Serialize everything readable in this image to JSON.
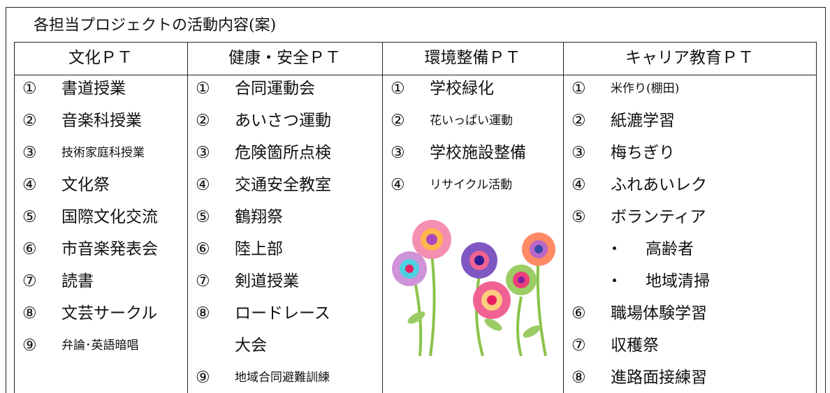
{
  "title": "各担当プロジェクトの活動内容(案)",
  "table": {
    "headers": [
      "文化ＰＴ",
      "健康・安全ＰＴ",
      "環境整備ＰＴ",
      "キャリア教育ＰＴ"
    ],
    "columns": [
      {
        "items": [
          {
            "num": "①",
            "text": "書道授業"
          },
          {
            "num": "②",
            "text": "音楽科授業"
          },
          {
            "num": "③",
            "text": "技術家庭科授業"
          },
          {
            "num": "④",
            "text": "文化祭"
          },
          {
            "num": "⑤",
            "text": "国際文化交流"
          },
          {
            "num": "⑥",
            "text": "市音楽発表会"
          },
          {
            "num": "⑦",
            "text": "読書"
          },
          {
            "num": "⑧",
            "text": "文芸サークル"
          },
          {
            "num": "⑨",
            "text": "弁論･英語暗唱"
          }
        ]
      },
      {
        "items": [
          {
            "num": "①",
            "text": "合同運動会"
          },
          {
            "num": "②",
            "text": "あいさつ運動"
          },
          {
            "num": "③",
            "text": "危険箇所点検"
          },
          {
            "num": "④",
            "text": "交通安全教室"
          },
          {
            "num": "⑤",
            "text": "鶴翔祭"
          },
          {
            "num": "⑥",
            "text": "陸上部"
          },
          {
            "num": "⑦",
            "text": "剣道授業"
          },
          {
            "num": "⑧",
            "text": "ロードレース"
          },
          {
            "text": "大会"
          },
          {
            "num": "⑨",
            "text": "地域合同避難訓練"
          }
        ]
      },
      {
        "items": [
          {
            "num": "①",
            "text": "学校緑化"
          },
          {
            "num": "②",
            "text": "花いっぱい運動"
          },
          {
            "num": "③",
            "text": "学校施設整備"
          },
          {
            "num": "④",
            "text": "リサイクル活動"
          }
        ]
      },
      {
        "items": [
          {
            "num": "①",
            "text": "米作り(棚田)"
          },
          {
            "num": "②",
            "text": "紙漉学習"
          },
          {
            "num": "③",
            "text": "梅ちぎり"
          },
          {
            "num": "④",
            "text": "ふれあいレク"
          },
          {
            "num": "⑤",
            "text": "ボランティア"
          },
          {
            "num": "・",
            "text": "高齢者"
          },
          {
            "num": "・",
            "text": "地域清掃"
          },
          {
            "num": "⑥",
            "text": "職場体験学習"
          },
          {
            "num": "⑦",
            "text": "収穫祭"
          },
          {
            "num": "⑧",
            "text": "進路面接練習"
          }
        ]
      }
    ]
  }
}
